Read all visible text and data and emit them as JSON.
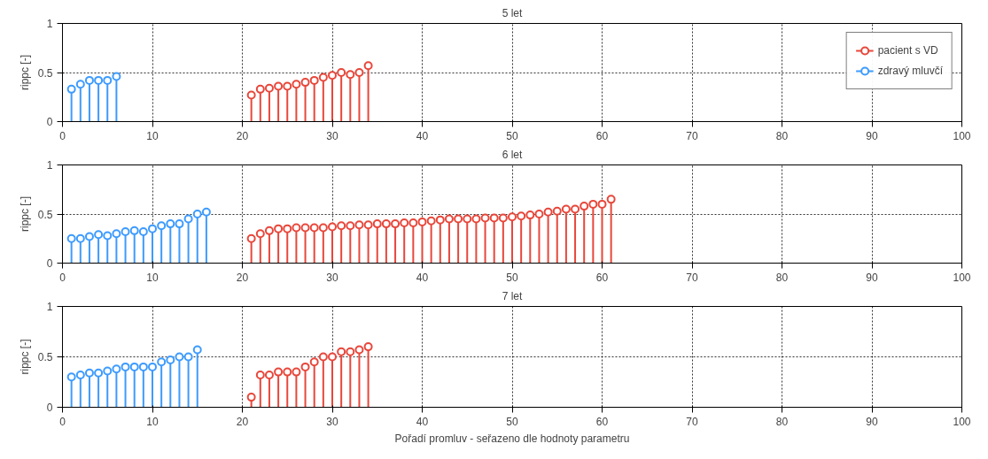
{
  "chart_data": [
    {
      "type": "lollipop",
      "title": "5 let",
      "ylabel": "rippc [-]",
      "xlim": [
        0,
        100
      ],
      "ylim": [
        0,
        1
      ],
      "xticks": [
        0,
        10,
        20,
        30,
        40,
        50,
        60,
        70,
        80,
        90,
        100
      ],
      "yticks": [
        0,
        0.5,
        1
      ],
      "grid": true,
      "marker": "circle",
      "legend": "top right",
      "series": [
        {
          "name": "pacient s VD",
          "color": "#e8473b",
          "x": [
            21,
            22,
            23,
            24,
            25,
            26,
            27,
            28,
            29,
            30,
            31,
            32,
            33,
            34
          ],
          "values": [
            0.27,
            0.33,
            0.34,
            0.36,
            0.36,
            0.38,
            0.4,
            0.42,
            0.45,
            0.47,
            0.5,
            0.48,
            0.5,
            0.57
          ]
        },
        {
          "name": "zdravý mluvčí",
          "color": "#3d9bff",
          "x": [
            1,
            2,
            3,
            4,
            5,
            6
          ],
          "values": [
            0.33,
            0.38,
            0.42,
            0.42,
            0.42,
            0.46
          ]
        }
      ]
    },
    {
      "type": "lollipop",
      "title": "6 let",
      "ylabel": "rippc [-]",
      "xlim": [
        0,
        100
      ],
      "ylim": [
        0,
        1
      ],
      "xticks": [
        0,
        10,
        20,
        30,
        40,
        50,
        60,
        70,
        80,
        90,
        100
      ],
      "yticks": [
        0,
        0.5,
        1
      ],
      "grid": true,
      "marker": "circle",
      "series": [
        {
          "color": "#e8473b",
          "x": [
            21,
            22,
            23,
            24,
            25,
            26,
            27,
            28,
            29,
            30,
            31,
            32,
            33,
            34,
            35,
            36,
            37,
            38,
            39,
            40,
            41,
            42,
            43,
            44,
            45,
            46,
            47,
            48,
            49,
            50,
            51,
            52,
            53,
            54,
            55,
            56,
            57,
            58,
            59,
            60,
            61
          ],
          "values": [
            0.25,
            0.3,
            0.33,
            0.35,
            0.35,
            0.36,
            0.36,
            0.36,
            0.36,
            0.37,
            0.38,
            0.38,
            0.39,
            0.39,
            0.4,
            0.4,
            0.4,
            0.41,
            0.41,
            0.42,
            0.43,
            0.44,
            0.45,
            0.45,
            0.45,
            0.45,
            0.46,
            0.46,
            0.46,
            0.47,
            0.48,
            0.49,
            0.5,
            0.52,
            0.53,
            0.55,
            0.55,
            0.58,
            0.6,
            0.6,
            0.65
          ]
        },
        {
          "color": "#3d9bff",
          "x": [
            1,
            2,
            3,
            4,
            5,
            6,
            7,
            8,
            9,
            10,
            11,
            12,
            13,
            14,
            15,
            16
          ],
          "values": [
            0.25,
            0.25,
            0.27,
            0.29,
            0.28,
            0.3,
            0.32,
            0.33,
            0.32,
            0.35,
            0.38,
            0.4,
            0.4,
            0.45,
            0.5,
            0.52
          ]
        }
      ]
    },
    {
      "type": "lollipop",
      "title": "7 let",
      "ylabel": "rippc [-]",
      "xlabel": "Pořadí promluv - seřazeno dle hodnoty parametru",
      "xlim": [
        0,
        100
      ],
      "ylim": [
        0,
        1
      ],
      "xticks": [
        0,
        10,
        20,
        30,
        40,
        50,
        60,
        70,
        80,
        90,
        100
      ],
      "yticks": [
        0,
        0.5,
        1
      ],
      "grid": true,
      "marker": "circle",
      "series": [
        {
          "color": "#e8473b",
          "x": [
            21,
            22,
            23,
            24,
            25,
            26,
            27,
            28,
            29,
            30,
            31,
            32,
            33,
            34
          ],
          "values": [
            0.1,
            0.32,
            0.32,
            0.35,
            0.35,
            0.35,
            0.4,
            0.45,
            0.5,
            0.5,
            0.55,
            0.55,
            0.57,
            0.6
          ]
        },
        {
          "color": "#3d9bff",
          "x": [
            1,
            2,
            3,
            4,
            5,
            6,
            7,
            8,
            9,
            10,
            11,
            12,
            13,
            14,
            15
          ],
          "values": [
            0.3,
            0.32,
            0.34,
            0.34,
            0.36,
            0.38,
            0.4,
            0.4,
            0.4,
            0.4,
            0.45,
            0.47,
            0.5,
            0.5,
            0.57
          ]
        }
      ]
    }
  ]
}
